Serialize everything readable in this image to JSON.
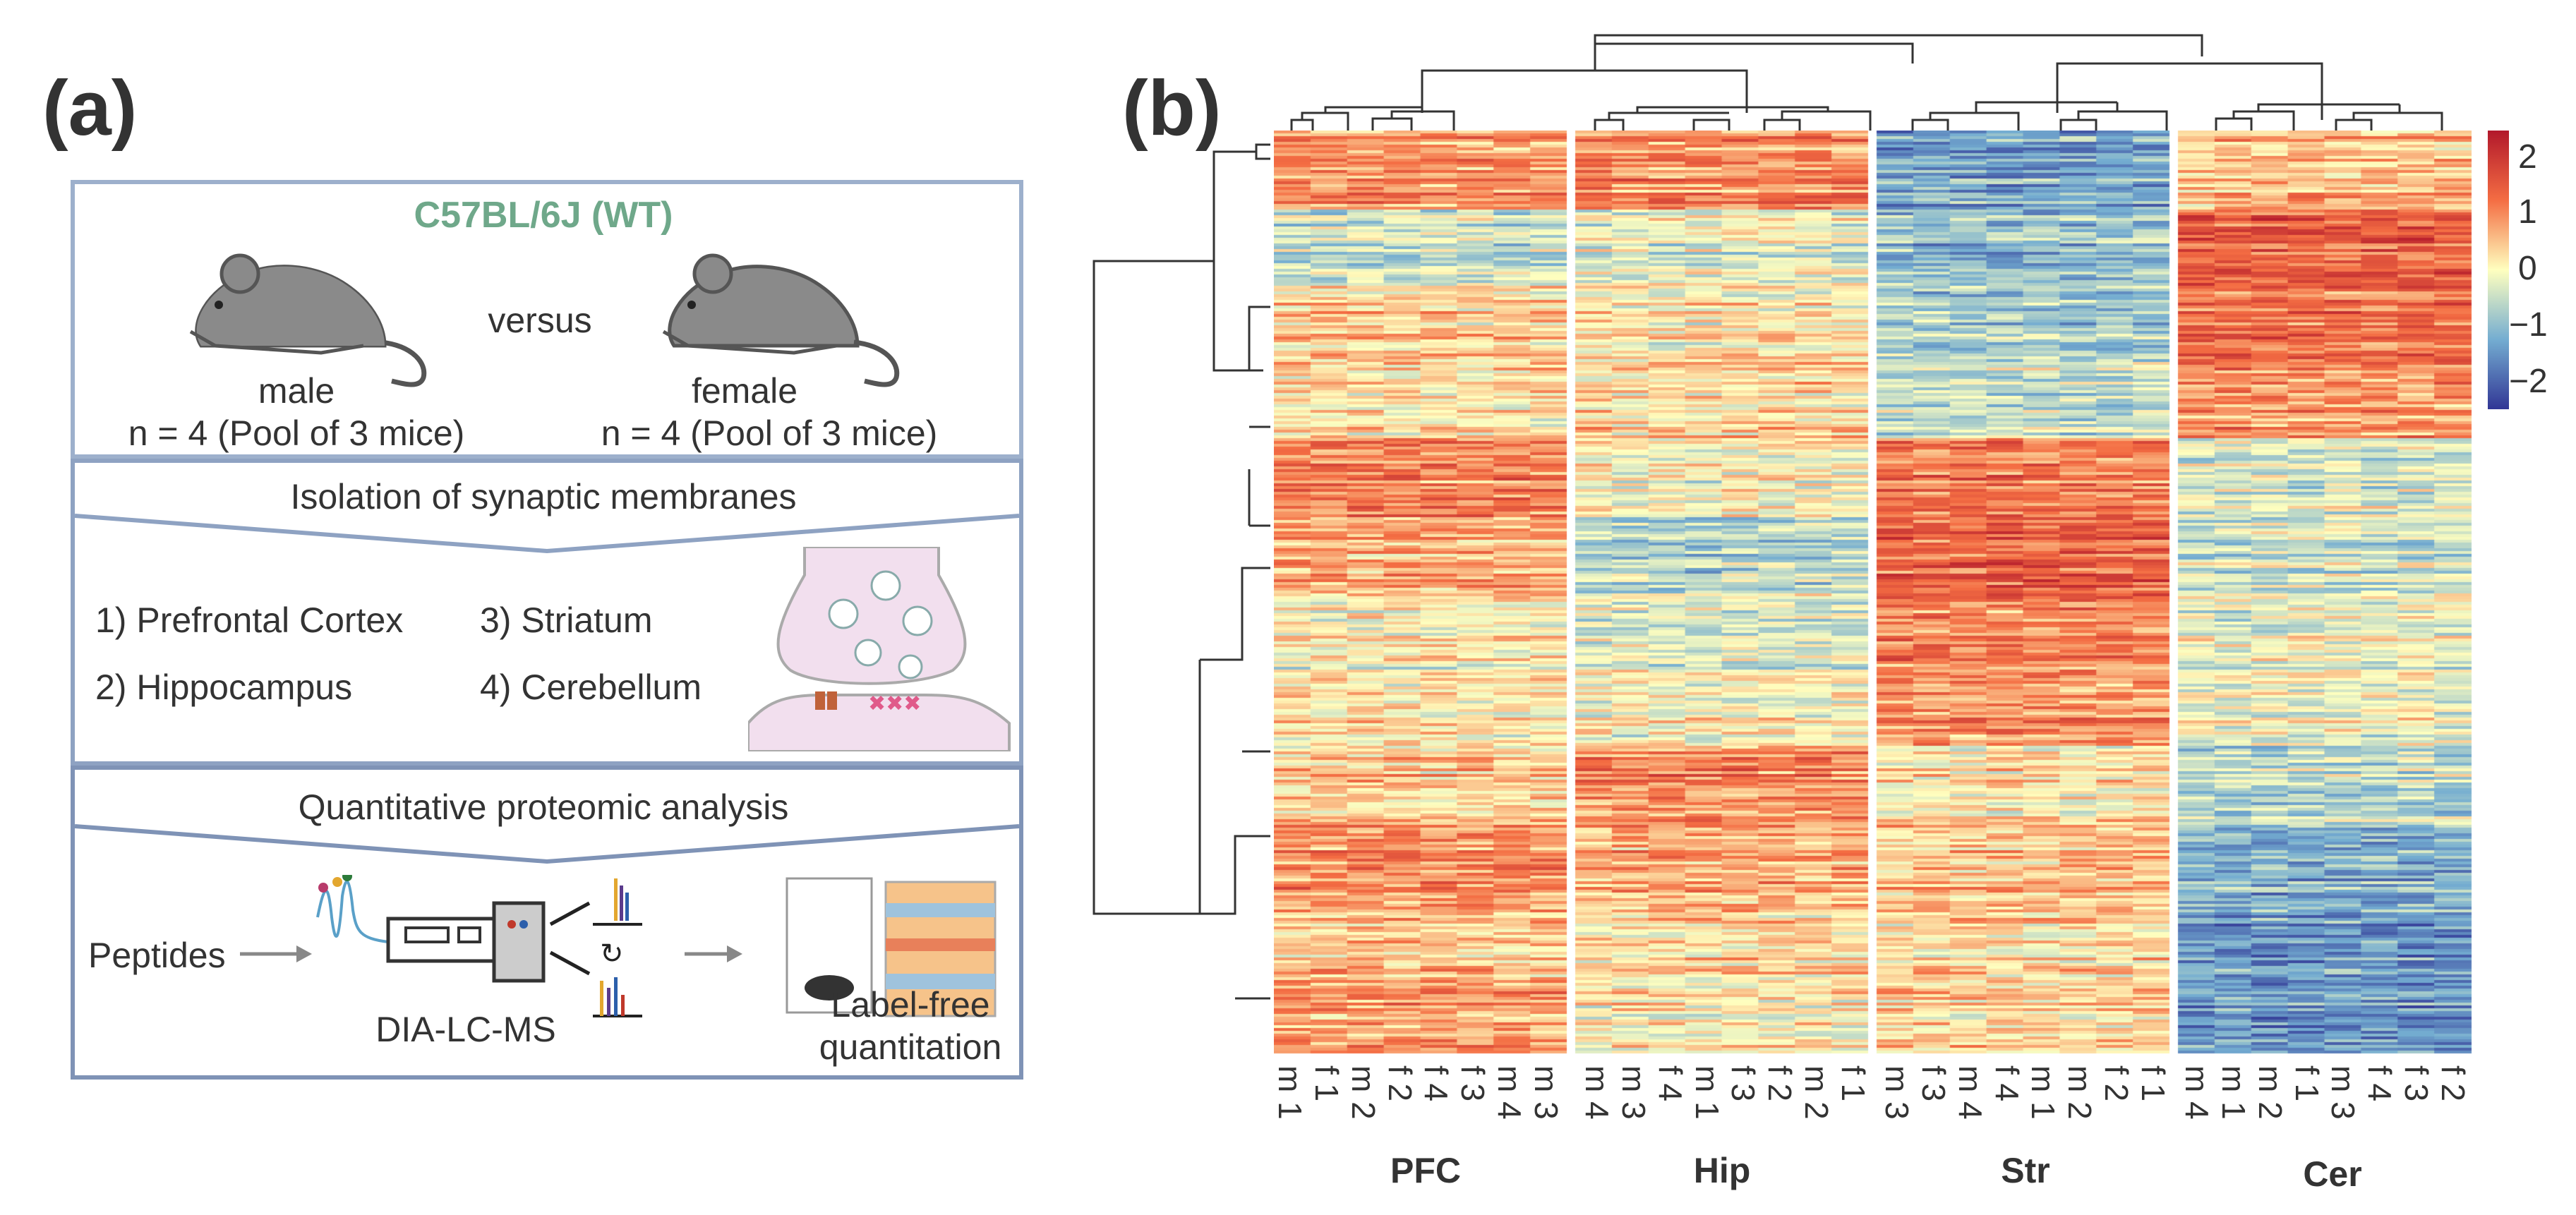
{
  "panel_a": {
    "letter": "(a)",
    "strain": "C57BL/6J (WT)",
    "versus": "versus",
    "male_label": "male",
    "female_label": "female",
    "male_n": "n = 4 (Pool of 3 mice)",
    "female_n": "n = 4 (Pool of 3 mice)",
    "step2_title": "Isolation of synaptic membranes",
    "regions": [
      "1) Prefrontal Cortex",
      "2) Hippocampus",
      "3) Striatum",
      "4) Cerebellum"
    ],
    "step3_title": "Quantitative proteomic analysis",
    "peptides": "Peptides",
    "dia": "DIA-LC-MS",
    "lfq_line1": "Label-free",
    "lfq_line2": "quantitation"
  },
  "panel_b": {
    "letter": "(b)",
    "colorbar_ticks": [
      "2",
      "1",
      "0",
      "−1",
      "−2"
    ],
    "colors": {
      "high": "#d73027",
      "mid": "#ffffbf",
      "low": "#4575b4"
    },
    "groups": [
      {
        "name": "PFC",
        "columns": [
          "m 1",
          "f 1",
          "m 2",
          "f 2",
          "f 4",
          "f 3",
          "m 4",
          "m 3"
        ]
      },
      {
        "name": "Hip",
        "columns": [
          "m 4",
          "m 3",
          "f 4",
          "m 1",
          "f 3",
          "f 2",
          "m 2",
          "f 1"
        ]
      },
      {
        "name": "Str",
        "columns": [
          "m 3",
          "f 3",
          "m 4",
          "f 4",
          "m 1",
          "m 2",
          "f 2",
          "f 1"
        ]
      },
      {
        "name": "Cer",
        "columns": [
          "m 4",
          "m 1",
          "m 2",
          "f 1",
          "m 3",
          "f 4",
          "f 3",
          "f 2"
        ]
      }
    ]
  }
}
